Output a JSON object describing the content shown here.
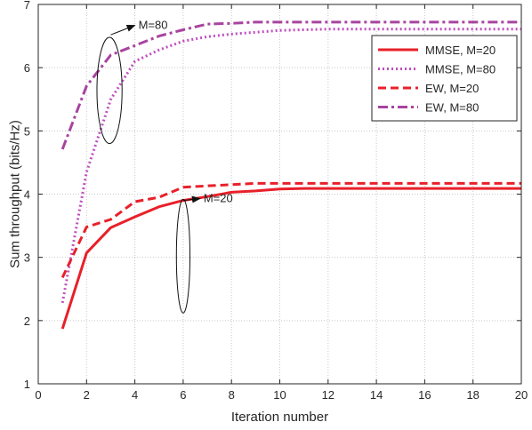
{
  "chart_data": {
    "type": "line",
    "title": "",
    "xlabel": "Iteration number",
    "ylabel": "Sum throughput (bits/Hz)",
    "xlim": [
      0,
      20
    ],
    "ylim": [
      1,
      7
    ],
    "xticks": [
      0,
      2,
      4,
      6,
      8,
      10,
      12,
      14,
      16,
      18,
      20
    ],
    "yticks": [
      1,
      2,
      3,
      4,
      5,
      6,
      7
    ],
    "grid": true,
    "grid_style": "dotted",
    "legend_position": "top-right",
    "x": [
      1,
      2,
      3,
      4,
      5,
      6,
      7,
      8,
      9,
      10,
      11,
      12,
      13,
      14,
      15,
      16,
      17,
      18,
      19,
      20
    ],
    "series": [
      {
        "name": "MMSE, M=20",
        "color": "#e8202a",
        "dash": "solid",
        "values": [
          1.87,
          3.07,
          3.47,
          3.64,
          3.8,
          3.9,
          3.96,
          4.03,
          4.05,
          4.08,
          4.09,
          4.09,
          4.09,
          4.09,
          4.09,
          4.09,
          4.09,
          4.09,
          4.09,
          4.09
        ]
      },
      {
        "name": "MMSE, M=80",
        "color": "#bf4fbf",
        "dash": "dotted",
        "values": [
          2.28,
          4.35,
          5.5,
          6.1,
          6.28,
          6.42,
          6.49,
          6.53,
          6.56,
          6.59,
          6.6,
          6.61,
          6.61,
          6.61,
          6.61,
          6.61,
          6.61,
          6.61,
          6.61,
          6.61
        ]
      },
      {
        "name": "EW, M=20",
        "color": "#e8202a",
        "dash": "dashed",
        "values": [
          2.68,
          3.48,
          3.6,
          3.88,
          3.95,
          4.11,
          4.13,
          4.15,
          4.17,
          4.17,
          4.17,
          4.17,
          4.17,
          4.17,
          4.17,
          4.17,
          4.17,
          4.17,
          4.17,
          4.17
        ]
      },
      {
        "name": "EW, M=80",
        "color": "#a8449f",
        "dash": "dashdot",
        "values": [
          4.71,
          5.71,
          6.2,
          6.35,
          6.5,
          6.6,
          6.69,
          6.7,
          6.72,
          6.72,
          6.72,
          6.72,
          6.72,
          6.72,
          6.72,
          6.72,
          6.72,
          6.72,
          6.72,
          6.72
        ]
      }
    ],
    "annotations": [
      {
        "text": "M=80",
        "ellipse_center": [
          2.95,
          5.64
        ],
        "ellipse_radii": [
          0.52,
          0.84
        ],
        "arrow_from": [
          3.0,
          6.52
        ],
        "arrow_to": [
          4.0,
          6.67
        ]
      },
      {
        "text": "M=20",
        "ellipse_center": [
          6.0,
          3.02
        ],
        "ellipse_radii": [
          0.28,
          0.9
        ],
        "arrow_from": [
          6.0,
          3.9
        ],
        "arrow_to": [
          6.7,
          3.93
        ]
      }
    ]
  }
}
